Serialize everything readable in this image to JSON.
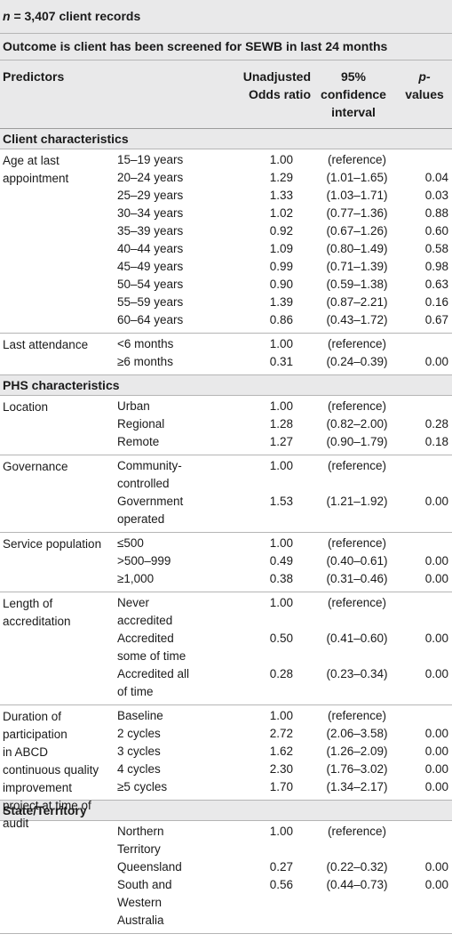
{
  "header": {
    "n_label": "n",
    "n_text": " = 3,407 client records",
    "outcome": "Outcome is client has been screened for SEWB in last 24 months"
  },
  "columns": {
    "predictors": "Predictors",
    "odds_ratio_line1": "Unadjusted",
    "odds_ratio_line2": "Odds ratio",
    "ci_line1": "95%",
    "ci_line2": "confidence",
    "ci_line3": "interval",
    "p_line1": "p-",
    "p_line2": "values"
  },
  "sections": [
    {
      "title": "Client characteristics",
      "groups": [
        {
          "label": "Age at last appointment",
          "rows": [
            {
              "level": "15–19 years",
              "or": "1.00",
              "ci": "(reference)",
              "p": ""
            },
            {
              "level": "20–24 years",
              "or": "1.29",
              "ci": "(1.01–1.65)",
              "p": "0.04"
            },
            {
              "level": "25–29 years",
              "or": "1.33",
              "ci": "(1.03–1.71)",
              "p": "0.03"
            },
            {
              "level": "30–34 years",
              "or": "1.02",
              "ci": "(0.77–1.36)",
              "p": "0.88"
            },
            {
              "level": "35–39 years",
              "or": "0.92",
              "ci": "(0.67–1.26)",
              "p": "0.60"
            },
            {
              "level": "40–44 years",
              "or": "1.09",
              "ci": "(0.80–1.49)",
              "p": "0.58"
            },
            {
              "level": "45–49 years",
              "or": "0.99",
              "ci": "(0.71–1.39)",
              "p": "0.98"
            },
            {
              "level": "50–54 years",
              "or": "0.90",
              "ci": "(0.59–1.38)",
              "p": "0.63"
            },
            {
              "level": "55–59 years",
              "or": "1.39",
              "ci": "(0.87–2.21)",
              "p": "0.16"
            },
            {
              "level": "60–64 years",
              "or": "0.86",
              "ci": "(0.43–1.72)",
              "p": "0.67"
            }
          ]
        },
        {
          "label": "Last attendance",
          "rows": [
            {
              "level": "<6 months",
              "or": "1.00",
              "ci": "(reference)",
              "p": ""
            },
            {
              "level": "≥6 months",
              "or": "0.31",
              "ci": "(0.24–0.39)",
              "p": "0.00"
            }
          ]
        }
      ]
    },
    {
      "title": "PHS characteristics",
      "groups": [
        {
          "label": "Location",
          "rows": [
            {
              "level": "Urban",
              "or": "1.00",
              "ci": "(reference)",
              "p": ""
            },
            {
              "level": "Regional",
              "or": "1.28",
              "ci": "(0.82–2.00)",
              "p": "0.28"
            },
            {
              "level": "Remote",
              "or": "1.27",
              "ci": "(0.90–1.79)",
              "p": "0.18"
            }
          ]
        },
        {
          "label": "Governance",
          "rows": [
            {
              "level": "Community-controlled",
              "or": "1.00",
              "ci": "(reference)",
              "p": ""
            },
            {
              "level": "Government operated",
              "or": "1.53",
              "ci": "(1.21–1.92)",
              "p": "0.00"
            }
          ]
        },
        {
          "label": "Service population",
          "rows": [
            {
              "level": "≤500",
              "or": "1.00",
              "ci": "(reference)",
              "p": ""
            },
            {
              "level": ">500–999",
              "or": "0.49",
              "ci": "(0.40–0.61)",
              "p": "0.00"
            },
            {
              "level": "≥1,000",
              "or": "0.38",
              "ci": "(0.31–0.46)",
              "p": "0.00"
            }
          ]
        },
        {
          "label": "Length of accreditation",
          "rows": [
            {
              "level": "Never accredited",
              "or": "1.00",
              "ci": "(reference)",
              "p": ""
            },
            {
              "level": "Accredited some of time",
              "or": "0.50",
              "ci": "(0.41–0.60)",
              "p": "0.00"
            },
            {
              "level": "Accredited all of time",
              "or": "0.28",
              "ci": "(0.23–0.34)",
              "p": "0.00"
            }
          ]
        },
        {
          "label": "Duration of participation in ABCD continuous quality improvement project at time of audit",
          "rows": [
            {
              "level": "Baseline",
              "or": "1.00",
              "ci": "(reference)",
              "p": ""
            },
            {
              "level": "2 cycles",
              "or": "2.72",
              "ci": "(2.06–3.58)",
              "p": "0.00"
            },
            {
              "level": "3 cycles",
              "or": "1.62",
              "ci": "(1.26–2.09)",
              "p": "0.00"
            },
            {
              "level": "4 cycles",
              "or": "2.30",
              "ci": "(1.76–3.02)",
              "p": "0.00"
            },
            {
              "level": "≥5 cycles",
              "or": "1.70",
              "ci": "(1.34–2.17)",
              "p": "0.00"
            }
          ]
        }
      ]
    },
    {
      "title": "State/Territory",
      "groups": [
        {
          "label": "",
          "rows": [
            {
              "level": "Northern Territory",
              "or": "1.00",
              "ci": "(reference)",
              "p": ""
            },
            {
              "level": "Queensland",
              "or": "0.27",
              "ci": "(0.22–0.32)",
              "p": "0.00"
            },
            {
              "level": "South and Western Australia",
              "or": "0.56",
              "ci": "(0.44–0.73)",
              "p": "0.00"
            }
          ]
        }
      ]
    }
  ]
}
